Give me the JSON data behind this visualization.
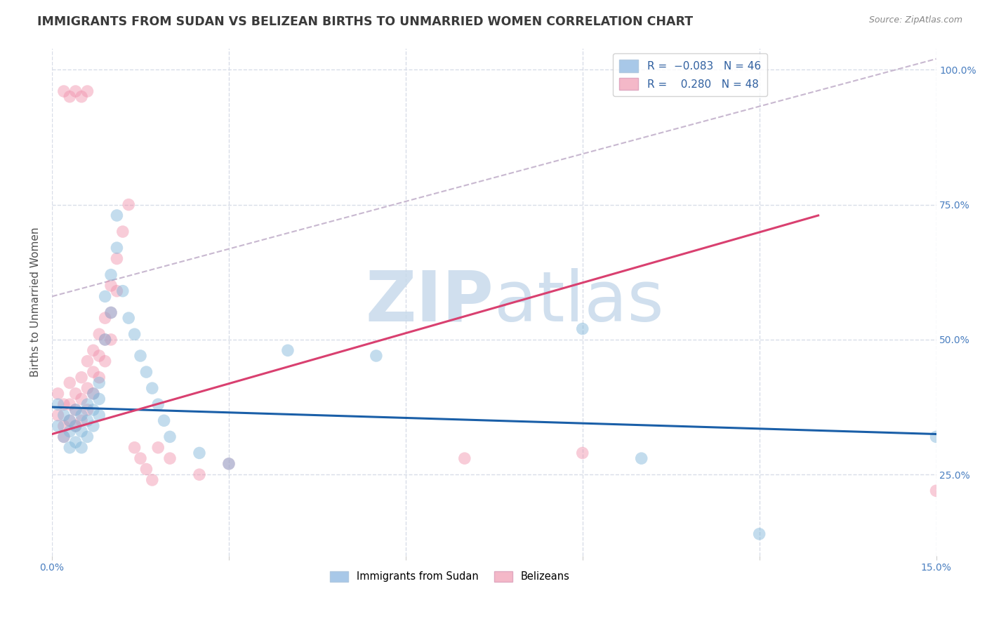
{
  "title": "IMMIGRANTS FROM SUDAN VS BELIZEAN BIRTHS TO UNMARRIED WOMEN CORRELATION CHART",
  "source": "Source: ZipAtlas.com",
  "ylabel": "Births to Unmarried Women",
  "xlim": [
    0.0,
    0.15
  ],
  "ylim": [
    0.1,
    1.04
  ],
  "ytick_vals": [
    0.25,
    0.5,
    0.75,
    1.0
  ],
  "ytick_labels": [
    "25.0%",
    "50.0%",
    "75.0%",
    "100.0%"
  ],
  "xtick_vals": [
    0.0,
    0.03,
    0.06,
    0.09,
    0.12,
    0.15
  ],
  "xtick_labels": [
    "0.0%",
    "",
    "",
    "",
    "",
    "15.0%"
  ],
  "blue_scatter": [
    [
      0.001,
      0.38
    ],
    [
      0.001,
      0.34
    ],
    [
      0.002,
      0.36
    ],
    [
      0.002,
      0.32
    ],
    [
      0.003,
      0.35
    ],
    [
      0.003,
      0.33
    ],
    [
      0.003,
      0.3
    ],
    [
      0.004,
      0.37
    ],
    [
      0.004,
      0.34
    ],
    [
      0.004,
      0.31
    ],
    [
      0.005,
      0.36
    ],
    [
      0.005,
      0.33
    ],
    [
      0.005,
      0.3
    ],
    [
      0.006,
      0.38
    ],
    [
      0.006,
      0.35
    ],
    [
      0.006,
      0.32
    ],
    [
      0.007,
      0.4
    ],
    [
      0.007,
      0.37
    ],
    [
      0.007,
      0.34
    ],
    [
      0.008,
      0.42
    ],
    [
      0.008,
      0.39
    ],
    [
      0.008,
      0.36
    ],
    [
      0.009,
      0.5
    ],
    [
      0.009,
      0.58
    ],
    [
      0.01,
      0.55
    ],
    [
      0.01,
      0.62
    ],
    [
      0.011,
      0.67
    ],
    [
      0.011,
      0.73
    ],
    [
      0.012,
      0.59
    ],
    [
      0.013,
      0.54
    ],
    [
      0.014,
      0.51
    ],
    [
      0.015,
      0.47
    ],
    [
      0.016,
      0.44
    ],
    [
      0.017,
      0.41
    ],
    [
      0.018,
      0.38
    ],
    [
      0.019,
      0.35
    ],
    [
      0.02,
      0.32
    ],
    [
      0.025,
      0.29
    ],
    [
      0.03,
      0.27
    ],
    [
      0.04,
      0.48
    ],
    [
      0.055,
      0.47
    ],
    [
      0.09,
      0.52
    ],
    [
      0.1,
      0.28
    ],
    [
      0.12,
      0.14
    ],
    [
      0.15,
      0.32
    ]
  ],
  "pink_scatter": [
    [
      0.001,
      0.4
    ],
    [
      0.001,
      0.36
    ],
    [
      0.002,
      0.38
    ],
    [
      0.002,
      0.34
    ],
    [
      0.002,
      0.32
    ],
    [
      0.003,
      0.42
    ],
    [
      0.003,
      0.38
    ],
    [
      0.003,
      0.35
    ],
    [
      0.004,
      0.4
    ],
    [
      0.004,
      0.37
    ],
    [
      0.004,
      0.34
    ],
    [
      0.005,
      0.43
    ],
    [
      0.005,
      0.39
    ],
    [
      0.005,
      0.35
    ],
    [
      0.006,
      0.46
    ],
    [
      0.006,
      0.41
    ],
    [
      0.006,
      0.37
    ],
    [
      0.007,
      0.48
    ],
    [
      0.007,
      0.44
    ],
    [
      0.007,
      0.4
    ],
    [
      0.008,
      0.51
    ],
    [
      0.008,
      0.47
    ],
    [
      0.008,
      0.43
    ],
    [
      0.009,
      0.54
    ],
    [
      0.009,
      0.5
    ],
    [
      0.009,
      0.46
    ],
    [
      0.01,
      0.6
    ],
    [
      0.01,
      0.55
    ],
    [
      0.01,
      0.5
    ],
    [
      0.011,
      0.65
    ],
    [
      0.011,
      0.59
    ],
    [
      0.012,
      0.7
    ],
    [
      0.013,
      0.75
    ],
    [
      0.014,
      0.3
    ],
    [
      0.015,
      0.28
    ],
    [
      0.016,
      0.26
    ],
    [
      0.017,
      0.24
    ],
    [
      0.018,
      0.3
    ],
    [
      0.02,
      0.28
    ],
    [
      0.025,
      0.25
    ],
    [
      0.03,
      0.27
    ],
    [
      0.002,
      0.96
    ],
    [
      0.003,
      0.95
    ],
    [
      0.004,
      0.96
    ],
    [
      0.005,
      0.95
    ],
    [
      0.006,
      0.96
    ],
    [
      0.07,
      0.28
    ],
    [
      0.09,
      0.29
    ],
    [
      0.15,
      0.22
    ]
  ],
  "blue_line": {
    "x0": 0.0,
    "y0": 0.375,
    "x1": 0.15,
    "y1": 0.325
  },
  "pink_line": {
    "x0": 0.0,
    "y0": 0.325,
    "x1": 0.13,
    "y1": 0.73
  },
  "grey_dashed_line": {
    "x0": 0.0,
    "y0": 0.58,
    "x1": 0.15,
    "y1": 1.02
  },
  "scatter_blue_color": "#7ab3d8",
  "scatter_pink_color": "#f08faa",
  "trend_blue_color": "#1a5fa8",
  "trend_pink_color": "#d94070",
  "dashed_color": "#c8b8d0",
  "watermark_text": "ZIPatlas",
  "watermark_color": "#c5d8ea",
  "background_color": "#ffffff",
  "grid_color": "#d8dde8",
  "title_color": "#3a3a3a",
  "axis_label_color": "#4a7fc0",
  "right_ytick_color": "#4a7fc0",
  "legend_patch_blue": "#a8c8e8",
  "legend_patch_pink": "#f4b8c8",
  "legend_r_color": "#d04060",
  "legend_n_color": "#404040"
}
